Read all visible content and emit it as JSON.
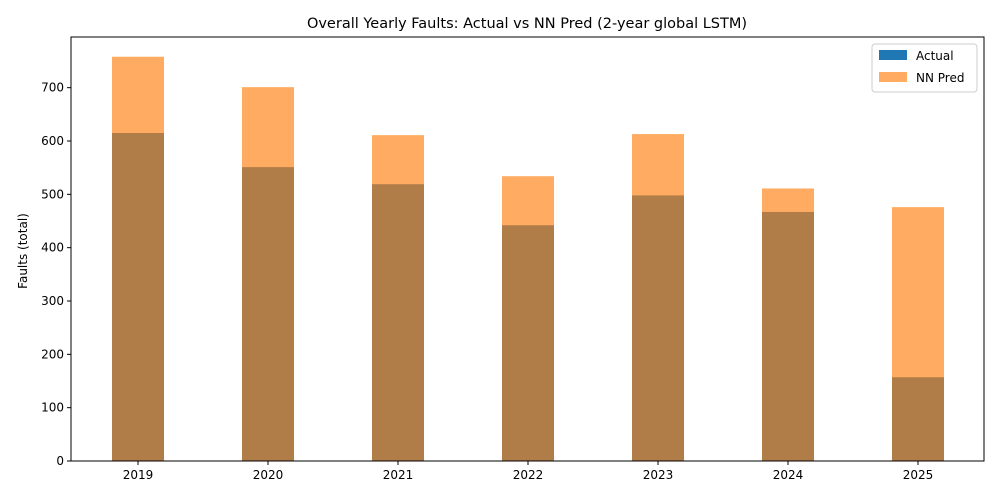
{
  "chart_data": {
    "type": "bar",
    "title": "Overall Yearly Faults: Actual vs NN Pred (2-year global LSTM)",
    "xlabel": "",
    "ylabel": "Faults (total)",
    "categories": [
      "2019",
      "2020",
      "2021",
      "2022",
      "2023",
      "2024",
      "2025"
    ],
    "series": [
      {
        "name": "Actual",
        "values": [
          615,
          551,
          519,
          442,
          498,
          467,
          157
        ],
        "color": "#1f77b4"
      },
      {
        "name": "NN Pred",
        "values": [
          758,
          701,
          611,
          534,
          613,
          511,
          476
        ],
        "color": "#ff7f0e",
        "opacity": 0.65
      }
    ],
    "ylim": [
      0,
      795
    ],
    "yticks": [
      0,
      100,
      200,
      300,
      400,
      500,
      600,
      700
    ],
    "grid": false,
    "legend": "top-right"
  }
}
